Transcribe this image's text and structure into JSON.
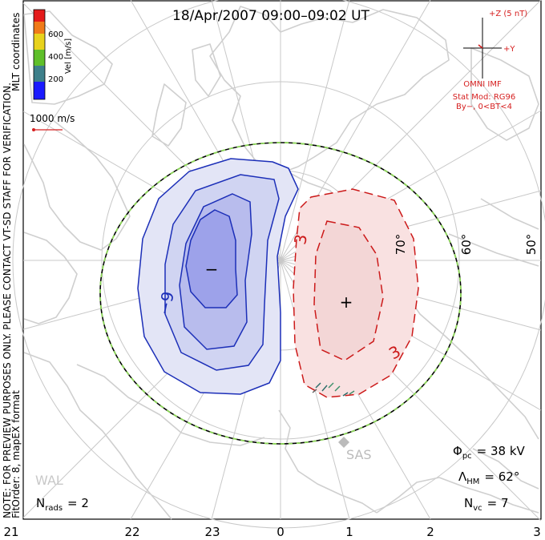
{
  "title": "18/Apr/2007 09:00–09:02 UT",
  "coordinate_system": "MLT coordinates",
  "colorbar": {
    "label": "Vel [m/s]",
    "ticks": [
      "200",
      "400",
      "600"
    ],
    "colors": [
      "#1a1aff",
      "#3d7f8a",
      "#5fbf2a",
      "#e8d21c",
      "#f07a18",
      "#e41a1a"
    ]
  },
  "reference_vector": "1000 m/s",
  "watermark_lines": [
    "NOTE: FOR PREVIEW PURPOSES ONLY. PLEASE CONTACT VT-SD STAFF FOR VERIFICATION.",
    "FitOrder: 8, mapEX format"
  ],
  "imf": {
    "z_label": "+Z (5 nT)",
    "y_label": "+Y",
    "source": "OMNI IMF",
    "stat_mod": "Stat Mod: RG96",
    "condition": "By−, 0<BT<4"
  },
  "latitude_labels": [
    "70°",
    "60°",
    "50°"
  ],
  "mlt_labels": [
    "21",
    "22",
    "23",
    "0",
    "1",
    "2",
    "3"
  ],
  "contour_labels": {
    "negative": "−9",
    "positive_left": "3",
    "positive_lower": "3"
  },
  "markers": {
    "min": "−",
    "max": "+"
  },
  "radars": [
    "SAS",
    "WAL"
  ],
  "stats": {
    "phi_pc": {
      "symbol": "Φ",
      "sub": "pc",
      "value": "= 38 kV"
    },
    "lambda_hm": {
      "symbol": "Λ",
      "sub": "HM",
      "value": "= 62°"
    },
    "n_rads": {
      "symbol": "N",
      "sub": "rads",
      "value": "= 2"
    },
    "n_vc": {
      "symbol": "N",
      "sub": "vc",
      "value": "= 7"
    }
  },
  "colors": {
    "negative_contour": "#1c2fb8",
    "positive_contour": "#cc1a1a",
    "neg_fill_outer": "#e3e5f6",
    "neg_fill_inner": "#9da2ea",
    "pos_fill": "#f9e1e1",
    "grid": "#c8c8c8",
    "coast": "#cfcfcf",
    "boundary_green": "#8ed85a"
  }
}
